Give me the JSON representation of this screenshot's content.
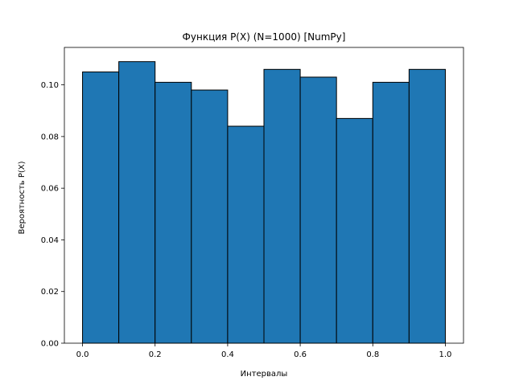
{
  "chart_data": {
    "type": "bar",
    "title": "Функция P(X) (N=1000) [NumPy]",
    "xlabel": "Интервалы",
    "ylabel": "Вероятность P(X)",
    "bins": [
      [
        0.0,
        0.1
      ],
      [
        0.1,
        0.2
      ],
      [
        0.2,
        0.3
      ],
      [
        0.3,
        0.4
      ],
      [
        0.4,
        0.5
      ],
      [
        0.5,
        0.6
      ],
      [
        0.6,
        0.7
      ],
      [
        0.7,
        0.8
      ],
      [
        0.8,
        0.9
      ],
      [
        0.9,
        1.0
      ]
    ],
    "values": [
      0.105,
      0.109,
      0.101,
      0.098,
      0.084,
      0.106,
      0.103,
      0.087,
      0.101,
      0.106
    ],
    "xlim": [
      -0.05,
      1.05
    ],
    "ylim": [
      0.0,
      0.1145
    ],
    "xticks": [
      0.0,
      0.2,
      0.4,
      0.6,
      0.8,
      1.0
    ],
    "xtick_labels": [
      "0.0",
      "0.2",
      "0.4",
      "0.6",
      "0.8",
      "1.0"
    ],
    "yticks": [
      0.0,
      0.02,
      0.04,
      0.06,
      0.08,
      0.1
    ],
    "ytick_labels": [
      "0.00",
      "0.02",
      "0.04",
      "0.06",
      "0.08",
      "0.10"
    ],
    "grid": false,
    "bar_color": "#1f77b4",
    "edge_color": "#000000"
  }
}
